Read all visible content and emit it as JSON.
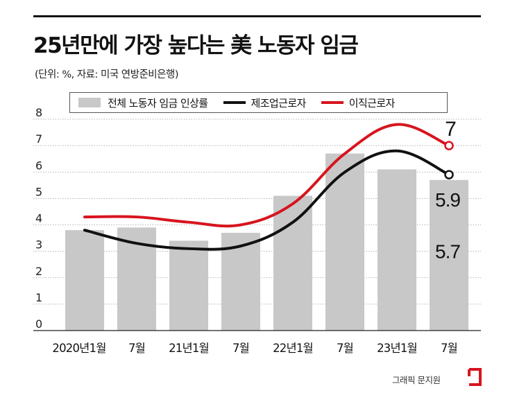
{
  "header": {
    "title": "25년만에 가장 높다는 美 노동자 임금",
    "subtitle": "(단위: %, 자료: 미국 연방준비은행)"
  },
  "legend": {
    "bar_label": "전체 노동자 임금 인상률",
    "black_label": "제조업근로자",
    "red_label": "이직근로자"
  },
  "colors": {
    "bar": "#c8c8c8",
    "black_line": "#111111",
    "red_line": "#d7141e",
    "grid": "#9a9a9a"
  },
  "chart_data": {
    "type": "bar",
    "title": "25년만에 가장 높다는 美 노동자 임금",
    "subtitle": "(단위: %, 자료: 미국 연방준비은행)",
    "categories": [
      "2020년1월",
      "7월",
      "21년1월",
      "7월",
      "22년1월",
      "7월",
      "23년1월",
      "7월"
    ],
    "ylim": [
      0,
      8
    ],
    "yticks": [
      0,
      1,
      2,
      3,
      4,
      5,
      6,
      7,
      8
    ],
    "grid": true,
    "legend_position": "top",
    "series": [
      {
        "name": "전체 노동자 임금 인상률",
        "type": "bar",
        "values": [
          3.8,
          3.9,
          3.4,
          3.7,
          5.1,
          6.7,
          6.1,
          5.7
        ]
      },
      {
        "name": "제조업근로자",
        "type": "line",
        "values": [
          3.8,
          3.3,
          3.1,
          3.2,
          4.1,
          6.0,
          6.8,
          5.9
        ]
      },
      {
        "name": "이직근로자",
        "type": "line",
        "values": [
          4.3,
          4.3,
          4.1,
          4.0,
          4.8,
          6.7,
          7.8,
          7.0
        ]
      }
    ],
    "annotations": [
      {
        "text": "7",
        "series": "이직근로자",
        "index": 7
      },
      {
        "text": "5.9",
        "series": "제조업근로자",
        "index": 7
      },
      {
        "text": "5.7",
        "series": "전체 노동자 임금 인상률",
        "index": 7
      }
    ]
  },
  "footer": {
    "credit": "그래픽 문지원"
  }
}
